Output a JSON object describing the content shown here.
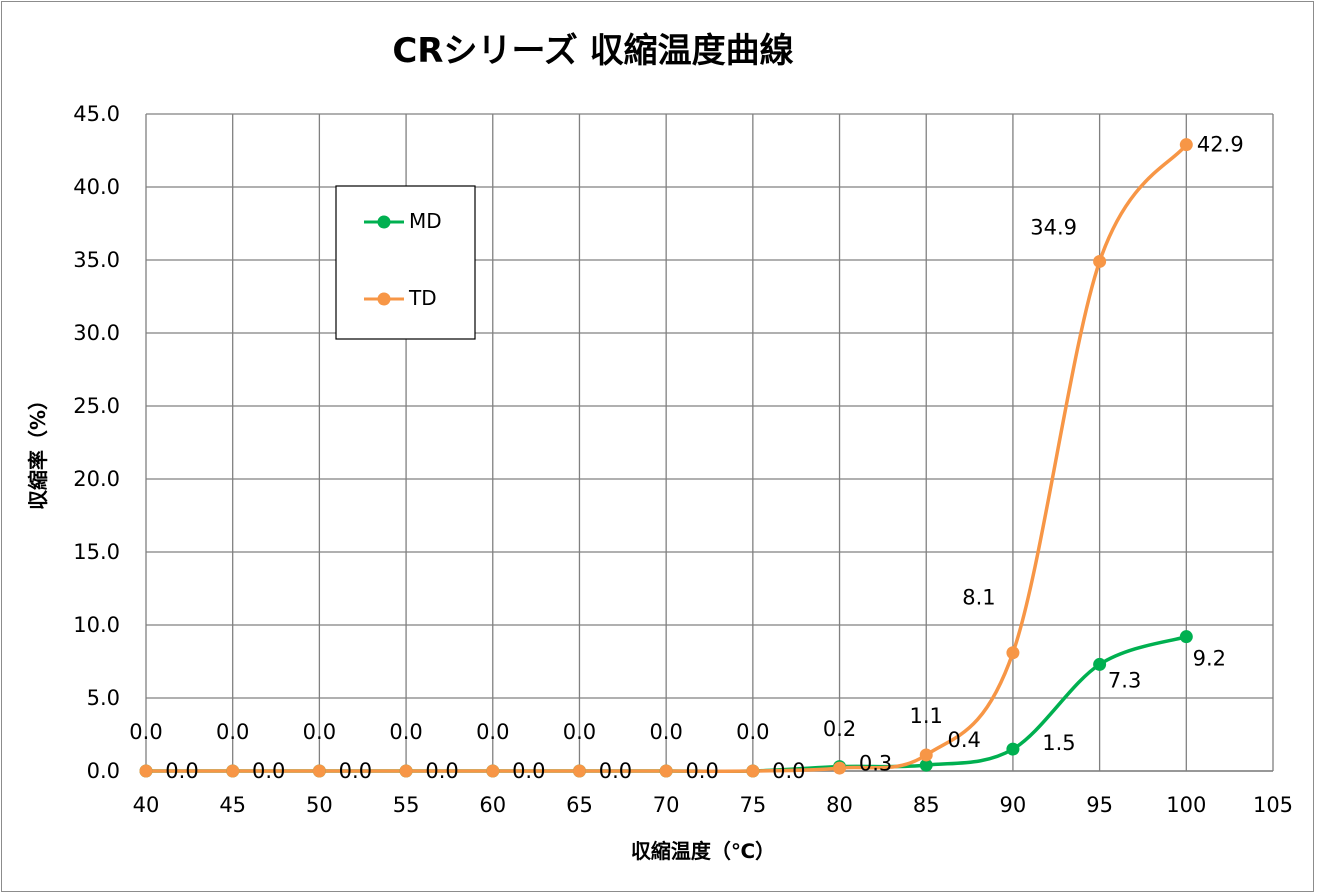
{
  "chart_data": {
    "type": "line",
    "title": "CRシリーズ 収縮温度曲線",
    "xlabel": "収縮温度（℃）",
    "ylabel": "収縮率（%）",
    "xlim": [
      40,
      105
    ],
    "ylim": [
      0,
      45
    ],
    "x_ticks": [
      "40",
      "45",
      "50",
      "55",
      "60",
      "65",
      "70",
      "75",
      "80",
      "85",
      "90",
      "95",
      "100",
      "105"
    ],
    "y_ticks": [
      "0.0",
      "5.0",
      "10.0",
      "15.0",
      "20.0",
      "25.0",
      "30.0",
      "35.0",
      "40.0",
      "45.0"
    ],
    "grid": true,
    "smooth": true,
    "legend_position": "top-left",
    "series": [
      {
        "name": "MD",
        "color": "#00b050",
        "x": [
          40,
          45,
          50,
          55,
          60,
          65,
          70,
          75,
          80,
          85,
          90,
          95,
          100
        ],
        "values": [
          0.0,
          0.0,
          0.0,
          0.0,
          0.0,
          0.0,
          0.0,
          0.0,
          0.3,
          0.4,
          1.5,
          7.3,
          9.2
        ],
        "labels": [
          "0.0",
          "0.0",
          "0.0",
          "0.0",
          "0.0",
          "0.0",
          "0.0",
          "0.0",
          "0.3",
          "0.4",
          "1.5",
          "7.3",
          "9.2"
        ]
      },
      {
        "name": "TD",
        "color": "#f79646",
        "x": [
          40,
          45,
          50,
          55,
          60,
          65,
          70,
          75,
          80,
          85,
          90,
          95,
          100
        ],
        "values": [
          0.0,
          0.0,
          0.0,
          0.0,
          0.0,
          0.0,
          0.0,
          0.0,
          0.2,
          1.1,
          8.1,
          34.9,
          42.9
        ],
        "labels": [
          "0.0",
          "0.0",
          "0.0",
          "0.0",
          "0.0",
          "0.0",
          "0.0",
          "0.0",
          "0.2",
          "1.1",
          "8.1",
          "34.9",
          "42.9"
        ]
      }
    ]
  }
}
